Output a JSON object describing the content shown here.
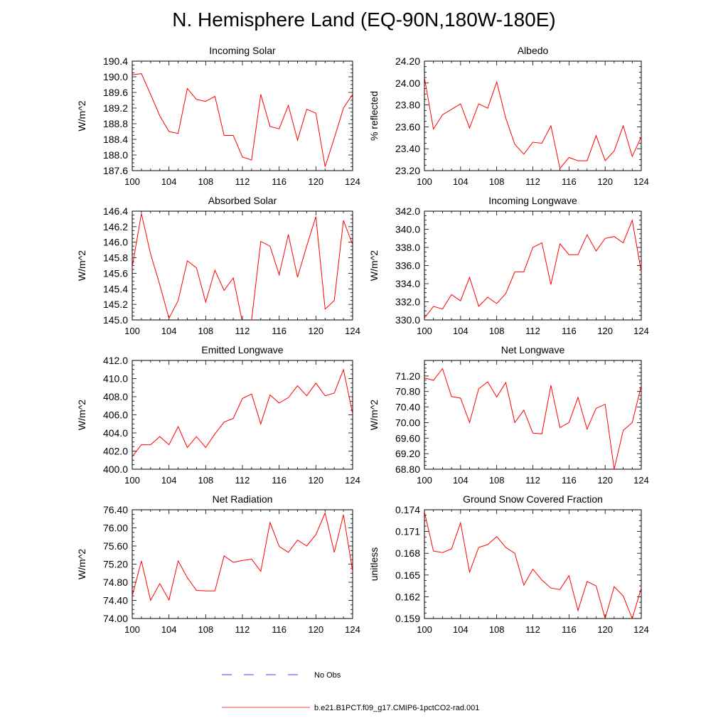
{
  "title": "N. Hemisphere Land (EQ-90N,180W-180E)",
  "legend": {
    "entries": [
      {
        "label": "No Obs",
        "color": "#0000ff",
        "style": "dashed"
      },
      {
        "label": "b.e21.B1PCT.f09_g17.CMIP6-1pctCO2-rad.001",
        "color": "#ff0000",
        "style": "solid"
      }
    ]
  },
  "chart_data": [
    {
      "type": "line",
      "title": "Incoming Solar",
      "ylabel": "W/m^2",
      "xlim": [
        100,
        124
      ],
      "ylim": [
        187.6,
        190.4
      ],
      "xticks": [
        "100",
        "104",
        "108",
        "112",
        "116",
        "120",
        "124"
      ],
      "yticks": [
        "187.6",
        "188.0",
        "188.4",
        "188.8",
        "189.2",
        "189.6",
        "190.0",
        "190.4"
      ],
      "series": [
        {
          "color": "#ff0000",
          "x": [
            100,
            101,
            102,
            103,
            104,
            105,
            106,
            107,
            108,
            109,
            110,
            111,
            112,
            113,
            114,
            115,
            116,
            117,
            118,
            119,
            120,
            121,
            122,
            123,
            124
          ],
          "y": [
            190.05,
            190.08,
            189.55,
            189.0,
            188.6,
            188.55,
            189.7,
            189.42,
            189.37,
            189.5,
            188.5,
            188.5,
            187.95,
            187.87,
            189.55,
            188.73,
            188.67,
            189.27,
            188.38,
            189.17,
            189.07,
            187.7,
            188.43,
            189.2,
            189.55
          ]
        }
      ]
    },
    {
      "type": "line",
      "title": "Albedo",
      "ylabel": "% reflected",
      "xlim": [
        100,
        124
      ],
      "ylim": [
        23.2,
        24.2
      ],
      "xticks": [
        "100",
        "104",
        "108",
        "112",
        "116",
        "120",
        "124"
      ],
      "yticks": [
        "23.20",
        "23.40",
        "23.60",
        "23.80",
        "24.00",
        "24.20"
      ],
      "series": [
        {
          "color": "#ff0000",
          "x": [
            100,
            101,
            102,
            103,
            104,
            105,
            106,
            107,
            108,
            109,
            110,
            111,
            112,
            113,
            114,
            115,
            116,
            117,
            118,
            119,
            120,
            121,
            122,
            123,
            124
          ],
          "y": [
            24.05,
            23.58,
            23.71,
            23.76,
            23.81,
            23.59,
            23.81,
            23.77,
            24.01,
            23.68,
            23.44,
            23.35,
            23.46,
            23.45,
            23.61,
            23.22,
            23.32,
            23.29,
            23.29,
            23.52,
            23.29,
            23.38,
            23.61,
            23.33,
            23.51
          ]
        }
      ]
    },
    {
      "type": "line",
      "title": "Absorbed Solar",
      "ylabel": "W/m^2",
      "xlim": [
        100,
        124
      ],
      "ylim": [
        145.0,
        146.4
      ],
      "xticks": [
        "100",
        "104",
        "108",
        "112",
        "116",
        "120",
        "124"
      ],
      "yticks": [
        "145.0",
        "145.2",
        "145.4",
        "145.6",
        "145.8",
        "146.0",
        "146.2",
        "146.4"
      ],
      "series": [
        {
          "color": "#ff0000",
          "x": [
            100,
            101,
            102,
            103,
            104,
            105,
            106,
            107,
            108,
            109,
            110,
            111,
            112,
            113,
            114,
            115,
            116,
            117,
            118,
            119,
            120,
            121,
            122,
            123,
            124
          ],
          "y": [
            145.68,
            146.37,
            145.85,
            145.45,
            145.02,
            145.25,
            145.76,
            145.67,
            145.23,
            145.64,
            145.38,
            145.54,
            144.97,
            145.0,
            146.01,
            145.95,
            145.58,
            146.1,
            145.55,
            145.95,
            146.33,
            145.14,
            145.25,
            146.28,
            145.97
          ]
        }
      ]
    },
    {
      "type": "line",
      "title": "Incoming Longwave",
      "ylabel": "W/m^2",
      "xlim": [
        100,
        124
      ],
      "ylim": [
        330.0,
        342.0
      ],
      "xticks": [
        "100",
        "104",
        "108",
        "112",
        "116",
        "120",
        "124"
      ],
      "yticks": [
        "330.0",
        "332.0",
        "334.0",
        "336.0",
        "338.0",
        "340.0",
        "342.0"
      ],
      "series": [
        {
          "color": "#ff0000",
          "x": [
            100,
            101,
            102,
            103,
            104,
            105,
            106,
            107,
            108,
            109,
            110,
            111,
            112,
            113,
            114,
            115,
            116,
            117,
            118,
            119,
            120,
            121,
            122,
            123,
            124
          ],
          "y": [
            330.2,
            331.5,
            331.2,
            332.8,
            332.1,
            334.7,
            331.5,
            332.5,
            331.8,
            332.9,
            335.3,
            335.3,
            338.0,
            338.5,
            333.9,
            338.4,
            337.2,
            337.2,
            339.4,
            337.6,
            339.0,
            339.2,
            338.5,
            341.0,
            335.3
          ]
        }
      ]
    },
    {
      "type": "line",
      "title": "Emitted Longwave",
      "ylabel": "W/m^2",
      "xlim": [
        100,
        124
      ],
      "ylim": [
        400.0,
        412.0
      ],
      "xticks": [
        "100",
        "104",
        "108",
        "112",
        "116",
        "120",
        "124"
      ],
      "yticks": [
        "400.0",
        "402.0",
        "404.0",
        "406.0",
        "408.0",
        "410.0",
        "412.0"
      ],
      "series": [
        {
          "color": "#ff0000",
          "x": [
            100,
            101,
            102,
            103,
            104,
            105,
            106,
            107,
            108,
            109,
            110,
            111,
            112,
            113,
            114,
            115,
            116,
            117,
            118,
            119,
            120,
            121,
            122,
            123,
            124
          ],
          "y": [
            401.4,
            402.7,
            402.7,
            403.6,
            402.7,
            404.7,
            402.4,
            403.6,
            402.4,
            403.9,
            405.2,
            405.6,
            407.8,
            408.3,
            405.0,
            408.2,
            407.3,
            407.9,
            409.2,
            408.1,
            409.5,
            408.1,
            408.4,
            411.0,
            406.1
          ]
        }
      ]
    },
    {
      "type": "line",
      "title": "Net Longwave",
      "ylabel": "W/m^2",
      "xlim": [
        100,
        124
      ],
      "ylim": [
        68.8,
        71.6
      ],
      "xticks": [
        "100",
        "104",
        "108",
        "112",
        "116",
        "120",
        "124"
      ],
      "yticks": [
        "68.80",
        "69.20",
        "69.60",
        "70.00",
        "70.40",
        "70.80",
        "71.20"
      ],
      "series": [
        {
          "color": "#ff0000",
          "x": [
            100,
            101,
            102,
            103,
            104,
            105,
            106,
            107,
            108,
            109,
            110,
            111,
            112,
            113,
            114,
            115,
            116,
            117,
            118,
            119,
            120,
            121,
            122,
            123,
            124
          ],
          "y": [
            71.15,
            71.09,
            71.39,
            70.67,
            70.63,
            70.0,
            70.87,
            71.05,
            70.66,
            71.03,
            70.0,
            70.32,
            69.73,
            69.71,
            70.96,
            69.87,
            70.0,
            70.65,
            69.83,
            70.37,
            70.47,
            68.8,
            69.8,
            70.0,
            70.95
          ]
        }
      ]
    },
    {
      "type": "line",
      "title": "Net Radiation",
      "ylabel": "W/m^2",
      "xlim": [
        100,
        124
      ],
      "ylim": [
        74.0,
        76.4
      ],
      "xticks": [
        "100",
        "104",
        "108",
        "112",
        "116",
        "120",
        "124"
      ],
      "yticks": [
        "74.00",
        "74.40",
        "74.80",
        "75.20",
        "75.60",
        "76.00",
        "76.40"
      ],
      "series": [
        {
          "color": "#ff0000",
          "x": [
            100,
            101,
            102,
            103,
            104,
            105,
            106,
            107,
            108,
            109,
            110,
            111,
            112,
            113,
            114,
            115,
            116,
            117,
            118,
            119,
            120,
            121,
            122,
            123,
            124
          ],
          "y": [
            74.5,
            75.27,
            74.4,
            74.77,
            74.41,
            75.27,
            74.9,
            74.62,
            74.61,
            74.61,
            75.38,
            75.24,
            75.28,
            75.31,
            75.04,
            76.12,
            75.59,
            75.46,
            75.73,
            75.6,
            75.85,
            76.33,
            75.46,
            76.29,
            75.04
          ]
        }
      ]
    },
    {
      "type": "line",
      "title": "Ground Snow Covered Fraction",
      "ylabel": "unitless",
      "xlim": [
        100,
        124
      ],
      "ylim": [
        0.159,
        0.174
      ],
      "xticks": [
        "100",
        "104",
        "108",
        "112",
        "116",
        "120",
        "124"
      ],
      "yticks": [
        "0.159",
        "0.162",
        "0.165",
        "0.168",
        "0.171",
        "0.174"
      ],
      "series": [
        {
          "color": "#ff0000",
          "x": [
            100,
            101,
            102,
            103,
            104,
            105,
            106,
            107,
            108,
            109,
            110,
            111,
            112,
            113,
            114,
            115,
            116,
            117,
            118,
            119,
            120,
            121,
            122,
            123,
            124
          ],
          "y": [
            0.1737,
            0.1683,
            0.1681,
            0.1686,
            0.1722,
            0.1654,
            0.1688,
            0.1692,
            0.1703,
            0.1688,
            0.168,
            0.1636,
            0.1658,
            0.1643,
            0.1632,
            0.163,
            0.1649,
            0.1601,
            0.1641,
            0.1635,
            0.159,
            0.1634,
            0.1621,
            0.159,
            0.1632
          ]
        }
      ]
    }
  ]
}
